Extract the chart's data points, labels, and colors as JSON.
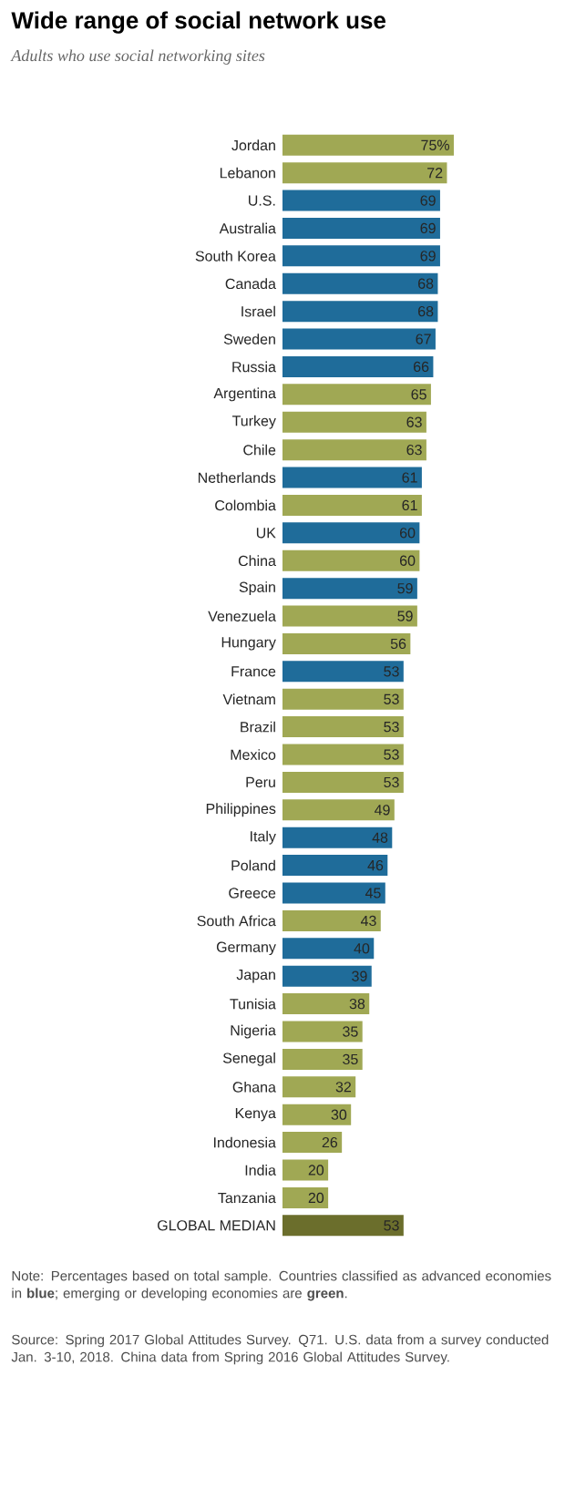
{
  "chart_data": {
    "type": "bar",
    "orientation": "horizontal",
    "title": "Wide range of social network use",
    "subtitle": "Adults who use social networking sites",
    "categories": [
      "Jordan",
      "Lebanon",
      "U.S.",
      "Australia",
      "South Korea",
      "Canada",
      "Israel",
      "Sweden",
      "Russia",
      "Argentina",
      "Turkey",
      "Chile",
      "Netherlands",
      "Colombia",
      "UK",
      "China",
      "Spain",
      "Venezuela",
      "Hungary",
      "France",
      "Vietnam",
      "Brazil",
      "Mexico",
      "Peru",
      "Philippines",
      "Italy",
      "Poland",
      "Greece",
      "South Africa",
      "Germany",
      "Japan",
      "Tunisia",
      "Nigeria",
      "Senegal",
      "Ghana",
      "Kenya",
      "Indonesia",
      "India",
      "Tanzania",
      "GLOBAL MEDIAN"
    ],
    "values": [
      75,
      72,
      69,
      69,
      69,
      68,
      68,
      67,
      66,
      65,
      63,
      63,
      61,
      61,
      60,
      60,
      59,
      59,
      56,
      53,
      53,
      53,
      53,
      53,
      49,
      48,
      46,
      45,
      43,
      40,
      39,
      38,
      35,
      35,
      32,
      30,
      26,
      20,
      20,
      53
    ],
    "value_labels": [
      "75%",
      "72",
      "69",
      "69",
      "69",
      "68",
      "68",
      "67",
      "66",
      "65",
      "63",
      "63",
      "61",
      "61",
      "60",
      "60",
      "59",
      "59",
      "56",
      "53",
      "53",
      "53",
      "53",
      "53",
      "49",
      "48",
      "46",
      "45",
      "43",
      "40",
      "39",
      "38",
      "35",
      "35",
      "32",
      "30",
      "26",
      "20",
      "20",
      "53"
    ],
    "colors": [
      "#a0a854",
      "#a0a854",
      "#1f6c9a",
      "#1f6c9a",
      "#1f6c9a",
      "#1f6c9a",
      "#1f6c9a",
      "#1f6c9a",
      "#1f6c9a",
      "#a0a854",
      "#a0a854",
      "#a0a854",
      "#1f6c9a",
      "#a0a854",
      "#1f6c9a",
      "#a0a854",
      "#1f6c9a",
      "#a0a854",
      "#a0a854",
      "#1f6c9a",
      "#a0a854",
      "#a0a854",
      "#a0a854",
      "#a0a854",
      "#a0a854",
      "#1f6c9a",
      "#1f6c9a",
      "#1f6c9a",
      "#a0a854",
      "#1f6c9a",
      "#1f6c9a",
      "#a0a854",
      "#a0a854",
      "#a0a854",
      "#a0a854",
      "#a0a854",
      "#a0a854",
      "#a0a854",
      "#a0a854",
      "#6b6e2c"
    ],
    "annotations": [
      "Note: Percentages based on total sample. Countries classified as advanced economies in **blue**; emerging or developing economies are **green**.",
      "Source: Spring 2017 Global Attitudes Survey. Q71. U.S. data from a survey conducted Jan. 3-10, 2018. China data from Spring 2016 Global Attitudes Survey."
    ]
  }
}
